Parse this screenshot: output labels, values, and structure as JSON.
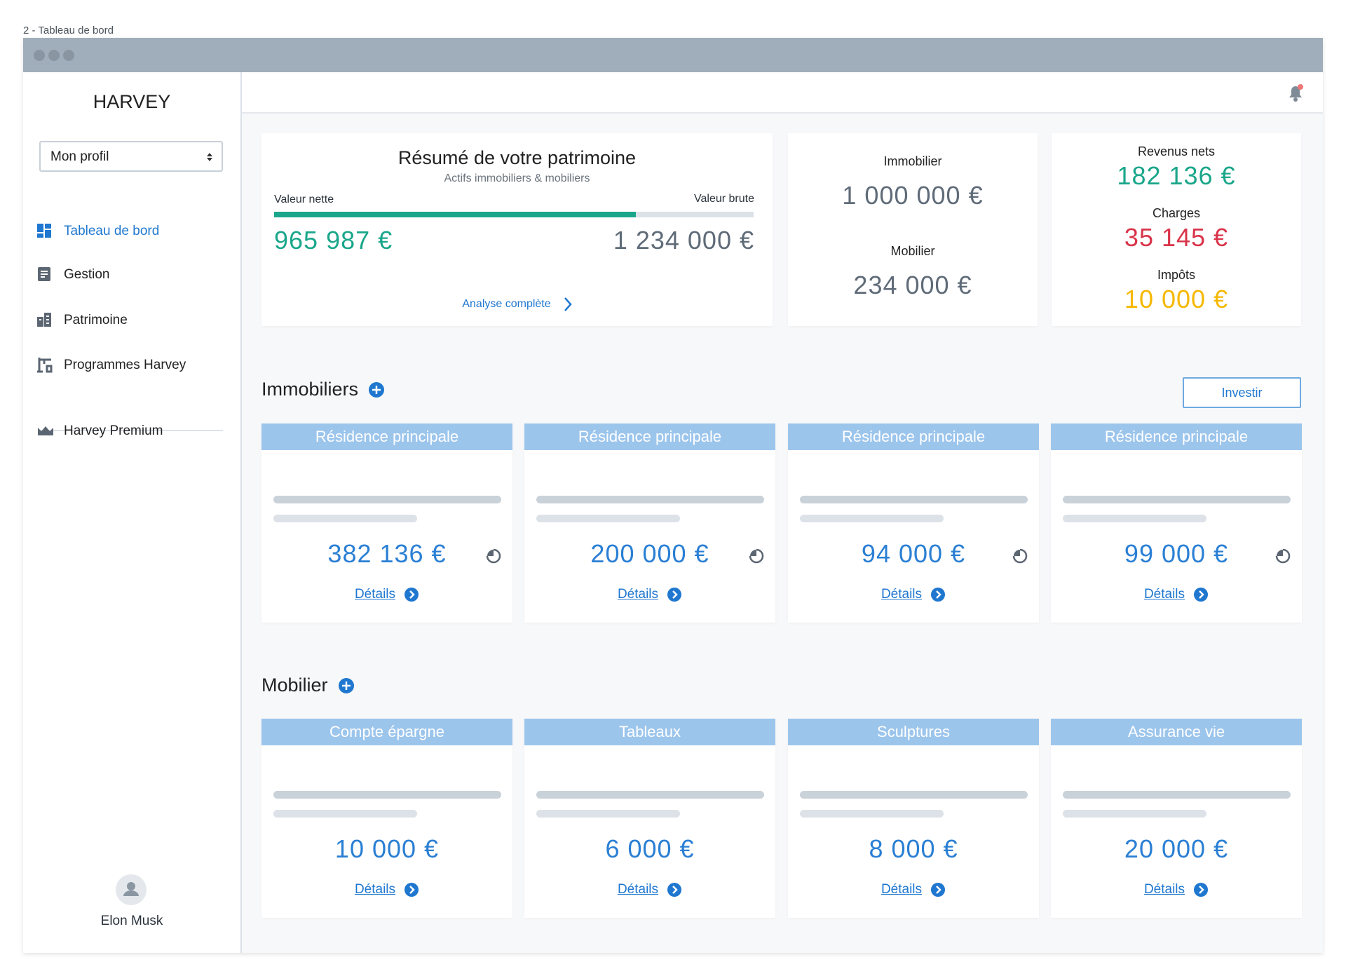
{
  "page_label": "2 - Tableau de bord",
  "sidebar": {
    "brand": "HARVEY",
    "profile_select": "Mon profil",
    "nav": [
      "Tableau de bord",
      "Gestion",
      "Patrimoine",
      "Programmes Harvey"
    ],
    "premium": "Harvey Premium",
    "user": "Elon Musk"
  },
  "summary": {
    "title": "Résumé de votre patrimoine",
    "subtitle": "Actifs immobiliers & mobiliers",
    "net_label": "Valeur nette",
    "gross_label": "Valeur brute",
    "net_value": "965 987 €",
    "gross_value": "1 234 000 €",
    "link": "Analyse complète"
  },
  "allocation": [
    {
      "label": "Immobilier",
      "value": "1 000 000 €"
    },
    {
      "label": "Mobilier",
      "value": "234 000 €"
    }
  ],
  "flows": [
    {
      "label": "Revenus nets",
      "value": "182 136 €"
    },
    {
      "label": "Charges",
      "value": "35 145 €"
    },
    {
      "label": "Impôts",
      "value": "10 000 €"
    }
  ],
  "immobiliers": {
    "title": "Immobiliers",
    "action": "Investir",
    "cards": [
      {
        "title": "Résidence principale",
        "value": "382 136 €",
        "link": "Détails"
      },
      {
        "title": "Résidence principale",
        "value": "200 000 €",
        "link": "Détails"
      },
      {
        "title": "Résidence principale",
        "value": "94 000 €",
        "link": "Détails"
      },
      {
        "title": "Résidence principale",
        "value": "99 000 €",
        "link": "Détails"
      }
    ]
  },
  "mobilier": {
    "title": "Mobilier",
    "cards": [
      {
        "title": "Compte épargne",
        "value": "10 000 €",
        "link": "Détails"
      },
      {
        "title": "Tableaux",
        "value": "6 000 €",
        "link": "Détails"
      },
      {
        "title": "Sculptures",
        "value": "8 000 €",
        "link": "Détails"
      },
      {
        "title": "Assurance vie",
        "value": "20 000 €",
        "link": "Détails"
      }
    ]
  }
}
